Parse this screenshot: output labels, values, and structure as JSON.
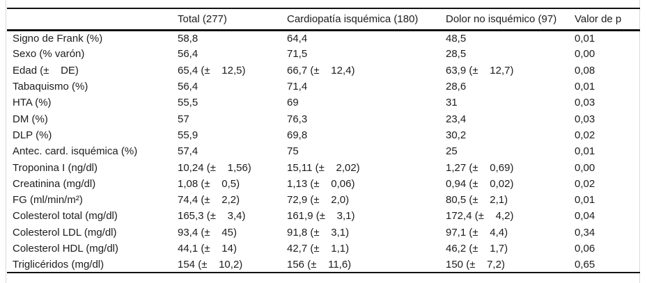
{
  "table": {
    "columns": [
      "",
      "Total (277)",
      "Cardiopatía isquémica (180)",
      "Dolor no isquémico (97)",
      "Valor de p"
    ],
    "rows": [
      [
        "Signo de Frank (%)",
        "58,8",
        "64,4",
        "48,5",
        "0,01"
      ],
      [
        "Sexo (% varón)",
        "56,4",
        "71,5",
        "28,5",
        "0,00"
      ],
      [
        "Edad (±    DE)",
        "65,4 (±    12,5)",
        "66,7 (±    12,4)",
        "63,9 (±    12,7)",
        "0,08"
      ],
      [
        "Tabaquismo (%)",
        "56,4",
        "71,4",
        "28,6",
        "0,01"
      ],
      [
        "HTA (%)",
        "55,5",
        "69",
        "31",
        "0,03"
      ],
      [
        "DM (%)",
        "57",
        "76,3",
        "23,4",
        "0,03"
      ],
      [
        "DLP (%)",
        "55,9",
        "69,8",
        "30,2",
        "0,02"
      ],
      [
        "Antec. card. isquémica (%)",
        "57,4",
        "75",
        "25",
        "0,01"
      ],
      [
        "Troponina I (ng/dl)",
        "10,24 (±    1,56)",
        "15,11 (±    2,02)",
        "1,27 (±    0,69)",
        "0,00"
      ],
      [
        "Creatinina (mg/dl)",
        "1,08 (±    0,5)",
        "1,13 (±    0,06)",
        "0,94 (±    0,02)",
        "0,02"
      ],
      [
        "FG (ml/min/m²)",
        "74,4 (±    2,2)",
        "72,9 (±    2,0)",
        "80,5 (±    2,1)",
        "0,01"
      ],
      [
        "Colesterol total (mg/dl)",
        "165,3 (±    3,4)",
        "161,9 (±    3,1)",
        "172,4 (±    4,2)",
        "0,04"
      ],
      [
        "Colesterol LDL (mg/dl)",
        "93,4 (±    45)",
        "91,8 (±    3,1)",
        "97,1 (±    4,4)",
        "0,34"
      ],
      [
        "Colesterol HDL (mg/dl)",
        "44,1 (±    14)",
        "42,7 (±    1,1)",
        "46,2 (±    1,7)",
        "0,06"
      ],
      [
        "Triglicéridos (mg/dl)",
        "154 (±    10,2)",
        "156 (±    11,6)",
        "150 (±    7,2)",
        "0,65"
      ]
    ]
  },
  "chart_data": {
    "type": "table",
    "title": "",
    "columns": [
      "",
      "Total (277)",
      "Cardiopatía isquémica (180)",
      "Dolor no isquémico (97)",
      "Valor de p"
    ],
    "rows": [
      {
        "variable": "Signo de Frank (%)",
        "total": "58,8",
        "cardiopatia_isquemica": "64,4",
        "dolor_no_isquemico": "48,5",
        "valor_p": "0,01"
      },
      {
        "variable": "Sexo (% varón)",
        "total": "56,4",
        "cardiopatia_isquemica": "71,5",
        "dolor_no_isquemico": "28,5",
        "valor_p": "0,00"
      },
      {
        "variable": "Edad (± DE)",
        "total": "65,4 (± 12,5)",
        "cardiopatia_isquemica": "66,7 (± 12,4)",
        "dolor_no_isquemico": "63,9 (± 12,7)",
        "valor_p": "0,08"
      },
      {
        "variable": "Tabaquismo (%)",
        "total": "56,4",
        "cardiopatia_isquemica": "71,4",
        "dolor_no_isquemico": "28,6",
        "valor_p": "0,01"
      },
      {
        "variable": "HTA (%)",
        "total": "55,5",
        "cardiopatia_isquemica": "69",
        "dolor_no_isquemico": "31",
        "valor_p": "0,03"
      },
      {
        "variable": "DM (%)",
        "total": "57",
        "cardiopatia_isquemica": "76,3",
        "dolor_no_isquemico": "23,4",
        "valor_p": "0,03"
      },
      {
        "variable": "DLP (%)",
        "total": "55,9",
        "cardiopatia_isquemica": "69,8",
        "dolor_no_isquemico": "30,2",
        "valor_p": "0,02"
      },
      {
        "variable": "Antec. card. isquémica (%)",
        "total": "57,4",
        "cardiopatia_isquemica": "75",
        "dolor_no_isquemico": "25",
        "valor_p": "0,01"
      },
      {
        "variable": "Troponina I (ng/dl)",
        "total": "10,24 (± 1,56)",
        "cardiopatia_isquemica": "15,11 (± 2,02)",
        "dolor_no_isquemico": "1,27 (± 0,69)",
        "valor_p": "0,00"
      },
      {
        "variable": "Creatinina (mg/dl)",
        "total": "1,08 (± 0,5)",
        "cardiopatia_isquemica": "1,13 (± 0,06)",
        "dolor_no_isquemico": "0,94 (± 0,02)",
        "valor_p": "0,02"
      },
      {
        "variable": "FG (ml/min/m²)",
        "total": "74,4 (± 2,2)",
        "cardiopatia_isquemica": "72,9 (± 2,0)",
        "dolor_no_isquemico": "80,5 (± 2,1)",
        "valor_p": "0,01"
      },
      {
        "variable": "Colesterol total (mg/dl)",
        "total": "165,3 (± 3,4)",
        "cardiopatia_isquemica": "161,9 (± 3,1)",
        "dolor_no_isquemico": "172,4 (± 4,2)",
        "valor_p": "0,04"
      },
      {
        "variable": "Colesterol LDL (mg/dl)",
        "total": "93,4 (± 45)",
        "cardiopatia_isquemica": "91,8 (± 3,1)",
        "dolor_no_isquemico": "97,1 (± 4,4)",
        "valor_p": "0,34"
      },
      {
        "variable": "Colesterol HDL (mg/dl)",
        "total": "44,1 (± 14)",
        "cardiopatia_isquemica": "42,7 (± 1,1)",
        "dolor_no_isquemico": "46,2 (± 1,7)",
        "valor_p": "0,06"
      },
      {
        "variable": "Triglicéridos (mg/dl)",
        "total": "154 (± 10,2)",
        "cardiopatia_isquemica": "156 (± 11,6)",
        "dolor_no_isquemico": "150 (± 7,2)",
        "valor_p": "0,65"
      }
    ]
  },
  "colors": {
    "text": "#1c1c1c",
    "rule": "#111111",
    "side_border": "#d9d9d9",
    "background": "#ffffff"
  }
}
